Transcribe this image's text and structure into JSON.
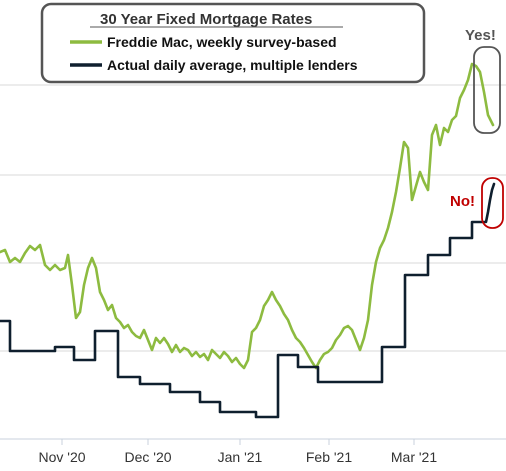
{
  "chart_data": {
    "type": "line",
    "title": "",
    "xlabel": "",
    "ylabel": "",
    "legend": {
      "title": "30 Year Fixed Mortgage Rates",
      "placement": "top-left",
      "entries": [
        {
          "label": "Freddie Mac, weekly survey-based",
          "color": "#8dbb40"
        },
        {
          "label": "Actual daily average, multiple lenders",
          "color": "#0f1f2e"
        }
      ]
    },
    "x_ticks": [
      "Nov '20",
      "Dec '20",
      "Jan '21",
      "Feb '21",
      "Mar '21"
    ],
    "y_gridlines": 5,
    "y_tick_labels_visible": false,
    "annotations": [
      {
        "text": "Yes!",
        "color": "#555555",
        "target": "Freddie Mac, weekly survey-based"
      },
      {
        "text": "No!",
        "color": "#c00000",
        "target": "Actual daily average, multiple lenders"
      }
    ],
    "series": [
      {
        "name": "Freddie Mac, weekly survey-based",
        "color": "#8dbb40",
        "points": [
          [
            0,
            252
          ],
          [
            5,
            250
          ],
          [
            10,
            262
          ],
          [
            15,
            258
          ],
          [
            20,
            262
          ],
          [
            25,
            253
          ],
          [
            30,
            246
          ],
          [
            35,
            250
          ],
          [
            40,
            245
          ],
          [
            45,
            265
          ],
          [
            50,
            270
          ],
          [
            55,
            265
          ],
          [
            60,
            270
          ],
          [
            65,
            268
          ],
          [
            68,
            255
          ],
          [
            72,
            285
          ],
          [
            76,
            318
          ],
          [
            80,
            312
          ],
          [
            84,
            285
          ],
          [
            88,
            268
          ],
          [
            92,
            258
          ],
          [
            96,
            268
          ],
          [
            100,
            292
          ],
          [
            104,
            300
          ],
          [
            108,
            310
          ],
          [
            112,
            305
          ],
          [
            116,
            318
          ],
          [
            120,
            322
          ],
          [
            124,
            328
          ],
          [
            128,
            325
          ],
          [
            132,
            332
          ],
          [
            136,
            336
          ],
          [
            140,
            338
          ],
          [
            144,
            330
          ],
          [
            148,
            340
          ],
          [
            152,
            350
          ],
          [
            156,
            338
          ],
          [
            160,
            343
          ],
          [
            164,
            338
          ],
          [
            168,
            344
          ],
          [
            172,
            352
          ],
          [
            176,
            345
          ],
          [
            180,
            352
          ],
          [
            184,
            348
          ],
          [
            188,
            350
          ],
          [
            192,
            356
          ],
          [
            196,
            352
          ],
          [
            200,
            357
          ],
          [
            204,
            354
          ],
          [
            208,
            360
          ],
          [
            212,
            350
          ],
          [
            216,
            354
          ],
          [
            220,
            358
          ],
          [
            224,
            352
          ],
          [
            228,
            356
          ],
          [
            232,
            362
          ],
          [
            236,
            358
          ],
          [
            240,
            364
          ],
          [
            244,
            368
          ],
          [
            248,
            360
          ],
          [
            252,
            332
          ],
          [
            256,
            328
          ],
          [
            260,
            320
          ],
          [
            264,
            306
          ],
          [
            268,
            300
          ],
          [
            272,
            292
          ],
          [
            276,
            300
          ],
          [
            280,
            306
          ],
          [
            284,
            314
          ],
          [
            288,
            320
          ],
          [
            292,
            330
          ],
          [
            296,
            338
          ],
          [
            300,
            342
          ],
          [
            304,
            348
          ],
          [
            308,
            355
          ],
          [
            312,
            362
          ],
          [
            316,
            368
          ],
          [
            320,
            360
          ],
          [
            324,
            354
          ],
          [
            328,
            352
          ],
          [
            332,
            348
          ],
          [
            336,
            340
          ],
          [
            340,
            335
          ],
          [
            344,
            328
          ],
          [
            348,
            326
          ],
          [
            352,
            330
          ],
          [
            356,
            340
          ],
          [
            360,
            350
          ],
          [
            364,
            338
          ],
          [
            368,
            320
          ],
          [
            372,
            285
          ],
          [
            376,
            262
          ],
          [
            380,
            248
          ],
          [
            384,
            240
          ],
          [
            388,
            228
          ],
          [
            392,
            212
          ],
          [
            396,
            192
          ],
          [
            400,
            168
          ],
          [
            404,
            142
          ],
          [
            408,
            148
          ],
          [
            412,
            200
          ],
          [
            416,
            186
          ],
          [
            420,
            172
          ],
          [
            424,
            182
          ],
          [
            428,
            190
          ],
          [
            432,
            135
          ],
          [
            436,
            125
          ],
          [
            440,
            145
          ],
          [
            444,
            128
          ],
          [
            448,
            132
          ],
          [
            452,
            120
          ],
          [
            456,
            116
          ],
          [
            460,
            98
          ],
          [
            464,
            90
          ],
          [
            468,
            80
          ],
          [
            472,
            64
          ],
          [
            476,
            66
          ],
          [
            480,
            72
          ],
          [
            484,
            92
          ],
          [
            488,
            115
          ],
          [
            493,
            125
          ]
        ]
      },
      {
        "name": "Actual daily average, multiple lenders",
        "color": "#0f1f2e",
        "points": [
          [
            0,
            321
          ],
          [
            10,
            321
          ],
          [
            10,
            351
          ],
          [
            55,
            351
          ],
          [
            55,
            347
          ],
          [
            74,
            347
          ],
          [
            74,
            360
          ],
          [
            95,
            360
          ],
          [
            95,
            331
          ],
          [
            118,
            331
          ],
          [
            118,
            377
          ],
          [
            140,
            377
          ],
          [
            140,
            384
          ],
          [
            170,
            384
          ],
          [
            170,
            392
          ],
          [
            200,
            392
          ],
          [
            200,
            402
          ],
          [
            220,
            402
          ],
          [
            220,
            412
          ],
          [
            256,
            412
          ],
          [
            256,
            417
          ],
          [
            278,
            417
          ],
          [
            278,
            355
          ],
          [
            298,
            355
          ],
          [
            298,
            367
          ],
          [
            318,
            367
          ],
          [
            318,
            382
          ],
          [
            382,
            382
          ],
          [
            382,
            347
          ],
          [
            405,
            347
          ],
          [
            405,
            275
          ],
          [
            428,
            275
          ],
          [
            428,
            255
          ],
          [
            450,
            255
          ],
          [
            450,
            238
          ],
          [
            472,
            238
          ],
          [
            472,
            222
          ],
          [
            486,
            222
          ],
          [
            488,
            212
          ],
          [
            490,
            200
          ],
          [
            492,
            190
          ],
          [
            494,
            184
          ]
        ]
      }
    ]
  }
}
